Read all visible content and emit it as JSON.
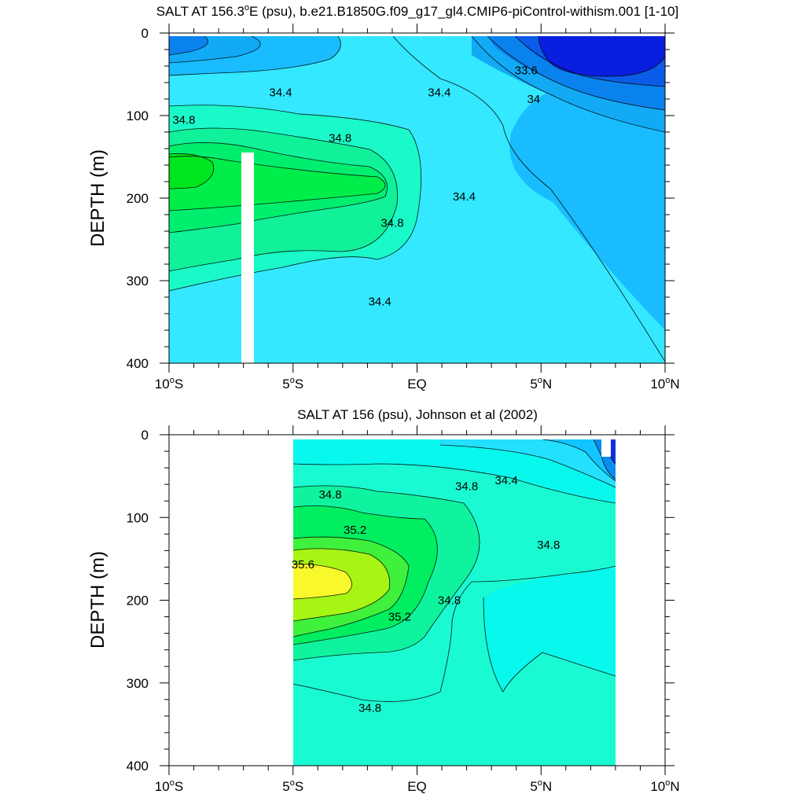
{
  "chart_data": [
    {
      "type": "contour",
      "title": "SALT AT 156.3°E (psu), b.e21.B1850G.f09_g17_gl4.CMIP6-piControl-withism.001 [1-10]",
      "title_parts": {
        "pre": "SALT AT 156.3",
        "deg": "o",
        "post": "E (psu), b.e21.B1850G.f09_g17_gl4.CMIP6-piControl-withism.001 [1-10]"
      },
      "ylabel": "DEPTH (m)",
      "xlim": [
        -10,
        10
      ],
      "ylim": [
        0,
        400
      ],
      "y_inverted": true,
      "x_ticks": [
        {
          "value": -10,
          "num": "10",
          "deg": "o",
          "hem": "S"
        },
        {
          "value": -5,
          "num": "5",
          "deg": "o",
          "hem": "S"
        },
        {
          "value": 0,
          "num": "EQ",
          "deg": "",
          "hem": ""
        },
        {
          "value": 5,
          "num": "5",
          "deg": "o",
          "hem": "N"
        },
        {
          "value": 10,
          "num": "10",
          "deg": "o",
          "hem": "N"
        }
      ],
      "y_ticks": [
        0,
        100,
        200,
        300,
        400
      ],
      "contour_labels": [
        {
          "text": "33.6",
          "x": 4.4,
          "y": 45
        },
        {
          "text": "34",
          "x": 4.7,
          "y": 80
        },
        {
          "text": "34.4",
          "x": -5.5,
          "y": 72
        },
        {
          "text": "34.4",
          "x": 0.9,
          "y": 72
        },
        {
          "text": "34.4",
          "x": 1.9,
          "y": 198
        },
        {
          "text": "34.4",
          "x": -1.5,
          "y": 325
        },
        {
          "text": "34.8",
          "x": -9.4,
          "y": 105
        },
        {
          "text": "34.8",
          "x": -3.1,
          "y": 127
        },
        {
          "text": "34.8",
          "x": -1.0,
          "y": 230
        }
      ],
      "masked_region": {
        "x": [
          -7.1,
          -6.6
        ],
        "y": [
          145,
          400
        ]
      }
    },
    {
      "type": "contour",
      "title": "SALT AT 156 (psu), Johnson et al (2002)",
      "ylabel": "DEPTH (m)",
      "xlim": [
        -10,
        10
      ],
      "ylim": [
        0,
        400
      ],
      "y_inverted": true,
      "data_x_range": [
        -5,
        8
      ],
      "x_ticks": [
        {
          "value": -10,
          "num": "10",
          "deg": "o",
          "hem": "S"
        },
        {
          "value": -5,
          "num": "5",
          "deg": "o",
          "hem": "S"
        },
        {
          "value": 0,
          "num": "EQ",
          "deg": "",
          "hem": ""
        },
        {
          "value": 5,
          "num": "5",
          "deg": "o",
          "hem": "N"
        },
        {
          "value": 10,
          "num": "10",
          "deg": "o",
          "hem": "N"
        }
      ],
      "y_ticks": [
        0,
        100,
        200,
        300,
        400
      ],
      "contour_labels": [
        {
          "text": "34.4",
          "x": 3.6,
          "y": 55
        },
        {
          "text": "34.8",
          "x": -3.5,
          "y": 72
        },
        {
          "text": "34.8",
          "x": 2.0,
          "y": 62
        },
        {
          "text": "34.8",
          "x": 5.3,
          "y": 133
        },
        {
          "text": "34.8",
          "x": 1.3,
          "y": 200
        },
        {
          "text": "34.8",
          "x": -1.9,
          "y": 330
        },
        {
          "text": "35.2",
          "x": -2.5,
          "y": 115
        },
        {
          "text": "35.2",
          "x": -0.7,
          "y": 220
        },
        {
          "text": "35.6",
          "x": -4.6,
          "y": 157
        }
      ]
    }
  ]
}
